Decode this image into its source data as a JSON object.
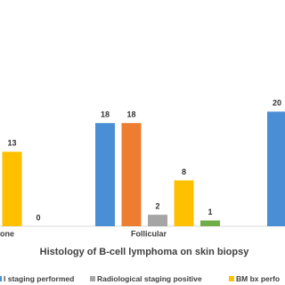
{
  "chart_data": {
    "type": "bar",
    "x_label": "Histology of B-cell lymphoma on skin biopsy",
    "categories": [
      "one",
      "Follicular",
      null
    ],
    "series": [
      {
        "name": "l staging performed",
        "color": "#4a8fd6",
        "values": [
          null,
          18,
          20
        ]
      },
      {
        "color": "#ed7d31",
        "values": [
          null,
          18,
          null
        ]
      },
      {
        "name": "Radiological staging positive",
        "color": "#a5a5a5",
        "values": [
          null,
          2,
          null
        ]
      },
      {
        "name": "BM bx perfo",
        "color": "#ffc000",
        "values": [
          13,
          8,
          null
        ]
      },
      {
        "color": "#70ad47",
        "values": [
          0,
          1,
          null
        ]
      }
    ],
    "ylim": [
      0,
      30
    ]
  }
}
